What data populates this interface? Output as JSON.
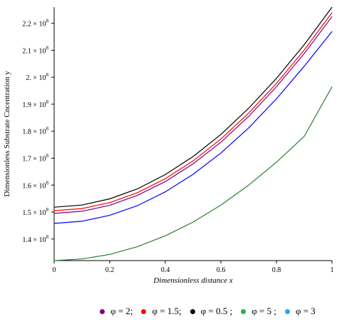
{
  "chart_data": {
    "type": "line",
    "xlabel": "Dimensionless distance x",
    "ylabel": "Dimensionless Substrate Cncentration y",
    "xlim": [
      0,
      1
    ],
    "ylim": [
      132000000.0,
      226000000.0
    ],
    "x_ticks": [
      {
        "value": 0,
        "label": "0"
      },
      {
        "value": 0.2,
        "label": "0.2"
      },
      {
        "value": 0.4,
        "label": "0.4"
      },
      {
        "value": 0.6,
        "label": "0.6"
      },
      {
        "value": 0.8,
        "label": "0.8"
      },
      {
        "value": 1,
        "label": "1"
      }
    ],
    "y_ticks": [
      {
        "value": 140000000.0,
        "mantissa": "1.4",
        "base": "× 10",
        "exp": "8"
      },
      {
        "value": 150000000.0,
        "mantissa": "1.5",
        "base": "× 10",
        "exp": "8"
      },
      {
        "value": 160000000.0,
        "mantissa": "1.6",
        "base": "× 10",
        "exp": "8"
      },
      {
        "value": 170000000.0,
        "mantissa": "1.7",
        "base": "× 10",
        "exp": "8"
      },
      {
        "value": 180000000.0,
        "mantissa": "1.8",
        "base": "× 10",
        "exp": "8"
      },
      {
        "value": 190000000.0,
        "mantissa": "1.9",
        "base": "× 10",
        "exp": "8"
      },
      {
        "value": 200000000.0,
        "mantissa": "2.",
        "base": "× 10",
        "exp": "8"
      },
      {
        "value": 210000000.0,
        "mantissa": "2.1",
        "base": "× 10",
        "exp": "8"
      },
      {
        "value": 220000000.0,
        "mantissa": "2.2",
        "base": "× 10",
        "exp": "8"
      }
    ],
    "x": [
      0,
      0.1,
      0.2,
      0.3,
      0.4,
      0.5,
      0.6,
      0.7,
      0.8,
      0.9,
      1
    ],
    "series": [
      {
        "name": "φ = 2;",
        "color": "#800080",
        "values": [
          149500000.0,
          150300000.0,
          152500000.0,
          156200000.0,
          161300000.0,
          167900000.0,
          175900000.0,
          185500000.0,
          196500000.0,
          208800000.0,
          222500000.0
        ]
      },
      {
        "name": "φ = 1.5;",
        "color": "#ff0000",
        "values": [
          150500000.0,
          151300000.0,
          153500000.0,
          157200000.0,
          162400000.0,
          169000000.0,
          177100000.0,
          186700000.0,
          197700000.0,
          210100000.0,
          224000000.0
        ]
      },
      {
        "name": "φ = 0.5 ;",
        "color": "#000000",
        "values": [
          151800000.0,
          152600000.0,
          154900000.0,
          158600000.0,
          163900000.0,
          170600000.0,
          178800000.0,
          188500000.0,
          199600000.0,
          212100000.0,
          226000000.0
        ]
      },
      {
        "name": "φ = 5 ;",
        "color": "#2e7d32",
        "values": [
          132000000.0,
          132600000.0,
          134300000.0,
          137200000.0,
          141200000.0,
          146300000.0,
          152600000.0,
          160000000.0,
          168500000.0,
          178100000.0,
          196500000.0
        ]
      },
      {
        "name": "φ = 3",
        "color": "#0000ff",
        "values": [
          145800000.0,
          146600000.0,
          148800000.0,
          152400000.0,
          157500000.0,
          164000000.0,
          171900000.0,
          181200000.0,
          192000000.0,
          204100000.0,
          217000000.0
        ]
      }
    ],
    "legend_position": "bottom",
    "legend_dot_colors": [
      "#800080",
      "#ff0000",
      "#000000",
      "#27ae60",
      "#1eaaf1"
    ],
    "grid": false
  }
}
